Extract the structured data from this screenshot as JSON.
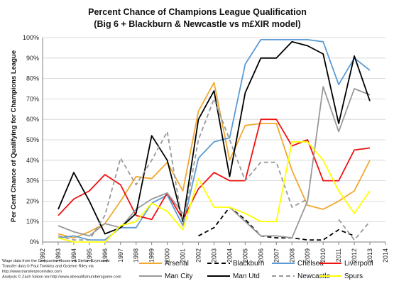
{
  "chart_data": {
    "type": "line",
    "title": "Percent Chance of Champions League Qualification",
    "subtitle": "(Big 6 + Blackburn & Newcastle vs m£XIR model)",
    "ylabel": "Per Cent Chance of Qualifying for Champions League",
    "xlabel": "",
    "xlim": [
      1992,
      2014
    ],
    "ylim": [
      0,
      100
    ],
    "x_ticks": [
      "1992",
      "1993",
      "1994",
      "1995",
      "1996",
      "1997",
      "1998",
      "1999",
      "2000",
      "2001",
      "2002",
      "2003",
      "2004",
      "2005",
      "2006",
      "2007",
      "2008",
      "2009",
      "2010",
      "2011",
      "2012",
      "2013",
      "2014"
    ],
    "y_ticks": [
      "0%",
      "10%",
      "20%",
      "30%",
      "40%",
      "50%",
      "60%",
      "70%",
      "80%",
      "90%",
      "100%"
    ],
    "grid": "horizontal",
    "legend_position": "bottom",
    "x": [
      1993,
      1994,
      1995,
      1996,
      1997,
      1998,
      1999,
      2000,
      2001,
      2002,
      2003,
      2004,
      2005,
      2006,
      2007,
      2008,
      2009,
      2010,
      2011,
      2012,
      2013
    ],
    "series": [
      {
        "name": "Arsenal",
        "color": "#f0a830",
        "dash": "solid",
        "values": [
          4,
          2,
          5,
          9,
          20,
          32,
          31,
          39,
          25,
          64,
          78,
          40,
          57,
          58,
          58,
          35,
          18,
          16,
          20,
          25,
          40
        ]
      },
      {
        "name": "Blackburn",
        "color": "#000000",
        "dash": "dashed",
        "values": [
          null,
          null,
          null,
          null,
          null,
          null,
          null,
          null,
          null,
          3,
          7,
          17,
          11,
          3,
          2,
          2,
          1,
          1,
          6,
          3,
          null
        ]
      },
      {
        "name": "Chelsea",
        "color": "#5b9bd5",
        "dash": "solid",
        "values": [
          2,
          3,
          1,
          1,
          7,
          7,
          19,
          23,
          8,
          41,
          49,
          51,
          87,
          99,
          99,
          99,
          99,
          98,
          77,
          90,
          84
        ]
      },
      {
        "name": "Liverpool",
        "color": "#ee1111",
        "dash": "solid",
        "values": [
          13,
          21,
          25,
          33,
          28,
          13,
          11,
          24,
          11,
          26,
          34,
          30,
          30,
          60,
          60,
          47,
          50,
          30,
          30,
          45,
          46
        ]
      },
      {
        "name": "Man City",
        "color": "#999999",
        "dash": "solid",
        "values": [
          8,
          5,
          3,
          9,
          7,
          16,
          21,
          24,
          14,
          null,
          null,
          17,
          10,
          3,
          3,
          2,
          20,
          76,
          54,
          75,
          72
        ]
      },
      {
        "name": "Man Utd",
        "color": "#000000",
        "dash": "solid",
        "values": [
          16,
          34,
          20,
          4,
          7,
          14,
          52,
          40,
          10,
          60,
          74,
          32,
          73,
          90,
          90,
          98,
          96,
          92,
          58,
          91,
          69
        ]
      },
      {
        "name": "Newcastle",
        "color": "#999999",
        "dash": "dashed",
        "values": [
          3,
          1,
          1,
          13,
          41,
          28,
          40,
          54,
          8,
          50,
          70,
          50,
          30,
          39,
          39,
          17,
          21,
          null,
          11,
          1,
          10
        ]
      },
      {
        "name": "Spurs",
        "color": "#ffff00",
        "dash": "solid",
        "values": [
          2,
          0,
          0,
          0,
          8,
          10,
          19,
          15,
          6,
          31,
          17,
          17,
          14,
          10,
          10,
          49,
          49,
          40,
          25,
          14,
          25
        ]
      }
    ]
  },
  "legend": [
    {
      "name": "Arsenal",
      "color": "#f0a830",
      "dash": "solid"
    },
    {
      "name": "Blackburn",
      "color": "#000000",
      "dash": "dashed"
    },
    {
      "name": "Chelsea",
      "color": "#5b9bd5",
      "dash": "solid"
    },
    {
      "name": "Liverpool",
      "color": "#ee1111",
      "dash": "solid"
    },
    {
      "name": "Man City",
      "color": "#999999",
      "dash": "solid"
    },
    {
      "name": "Man Utd",
      "color": "#000000",
      "dash": "solid"
    },
    {
      "name": "Newcastle",
      "color": "#999999",
      "dash": "dashed"
    },
    {
      "name": "Spurs",
      "color": "#ffff00",
      "dash": "solid"
    }
  ],
  "credits": [
    "Wage data from the Companies House via Stefan Szymanski",
    "Transfer data © Paul Tomkins and Graeme Riley via",
    "http://www.transferpriceindex.com",
    "Analysis © Zach Slaton via http://www.abeautifulnumbersgame.com"
  ]
}
